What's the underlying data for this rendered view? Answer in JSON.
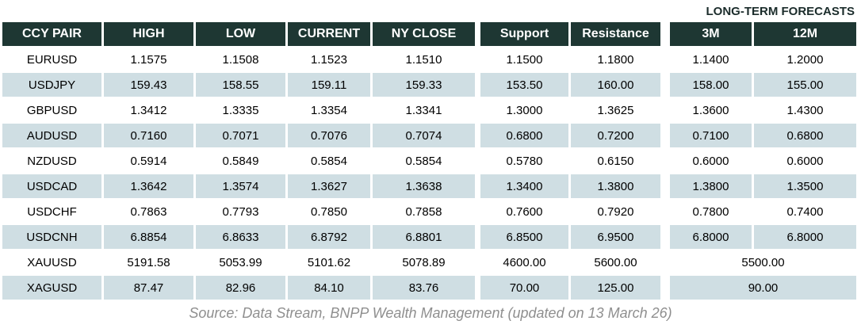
{
  "chart_data": {
    "type": "table",
    "title": "LONG-TERM FORECASTS",
    "columns": [
      "CCY PAIR",
      "HIGH",
      "LOW",
      "CURRENT",
      "NY CLOSE",
      "Support",
      "Resistance",
      "3M",
      "12M"
    ],
    "rows": [
      {
        "pair": "EURUSD",
        "high": "1.1575",
        "low": "1.1508",
        "current": "1.1523",
        "ny_close": "1.1510",
        "support": "1.1500",
        "resistance": "1.1800",
        "forecast_3m": "1.1400",
        "forecast_12m": "1.2000"
      },
      {
        "pair": "USDJPY",
        "high": "159.43",
        "low": "158.55",
        "current": "159.11",
        "ny_close": "159.33",
        "support": "153.50",
        "resistance": "160.00",
        "forecast_3m": "158.00",
        "forecast_12m": "155.00"
      },
      {
        "pair": "GBPUSD",
        "high": "1.3412",
        "low": "1.3335",
        "current": "1.3354",
        "ny_close": "1.3341",
        "support": "1.3000",
        "resistance": "1.3625",
        "forecast_3m": "1.3600",
        "forecast_12m": "1.4300"
      },
      {
        "pair": "AUDUSD",
        "high": "0.7160",
        "low": "0.7071",
        "current": "0.7076",
        "ny_close": "0.7074",
        "support": "0.6800",
        "resistance": "0.7200",
        "forecast_3m": "0.7100",
        "forecast_12m": "0.6800"
      },
      {
        "pair": "NZDUSD",
        "high": "0.5914",
        "low": "0.5849",
        "current": "0.5854",
        "ny_close": "0.5854",
        "support": "0.5780",
        "resistance": "0.6150",
        "forecast_3m": "0.6000",
        "forecast_12m": "0.6000"
      },
      {
        "pair": "USDCAD",
        "high": "1.3642",
        "low": "1.3574",
        "current": "1.3627",
        "ny_close": "1.3638",
        "support": "1.3400",
        "resistance": "1.3800",
        "forecast_3m": "1.3800",
        "forecast_12m": "1.3500"
      },
      {
        "pair": "USDCHF",
        "high": "0.7863",
        "low": "0.7793",
        "current": "0.7850",
        "ny_close": "0.7858",
        "support": "0.7600",
        "resistance": "0.7920",
        "forecast_3m": "0.7800",
        "forecast_12m": "0.7400"
      },
      {
        "pair": "USDCNH",
        "high": "6.8854",
        "low": "6.8633",
        "current": "6.8792",
        "ny_close": "6.8801",
        "support": "6.8500",
        "resistance": "6.9500",
        "forecast_3m": "6.8000",
        "forecast_12m": "6.8000"
      },
      {
        "pair": "XAUUSD",
        "high": "5191.58",
        "low": "5053.99",
        "current": "5101.62",
        "ny_close": "5078.89",
        "support": "4600.00",
        "resistance": "5600.00",
        "forecast_merged": "5500.00"
      },
      {
        "pair": "XAGUSD",
        "high": "87.47",
        "low": "82.96",
        "current": "84.10",
        "ny_close": "83.76",
        "support": "70.00",
        "resistance": "125.00",
        "forecast_merged": "90.00"
      }
    ],
    "source": "Source: Data Stream, BNPP Wealth Management (updated on 13 March 26)"
  },
  "colors": {
    "header_bg": "#1e3733",
    "header_text": "#ffffff",
    "row_shaded_bg": "#cfdee3",
    "row_plain_bg": "#ffffff",
    "body_text": "#000000",
    "forecast_label_text": "#1b2c2b",
    "source_text": "#8f8f8f"
  }
}
